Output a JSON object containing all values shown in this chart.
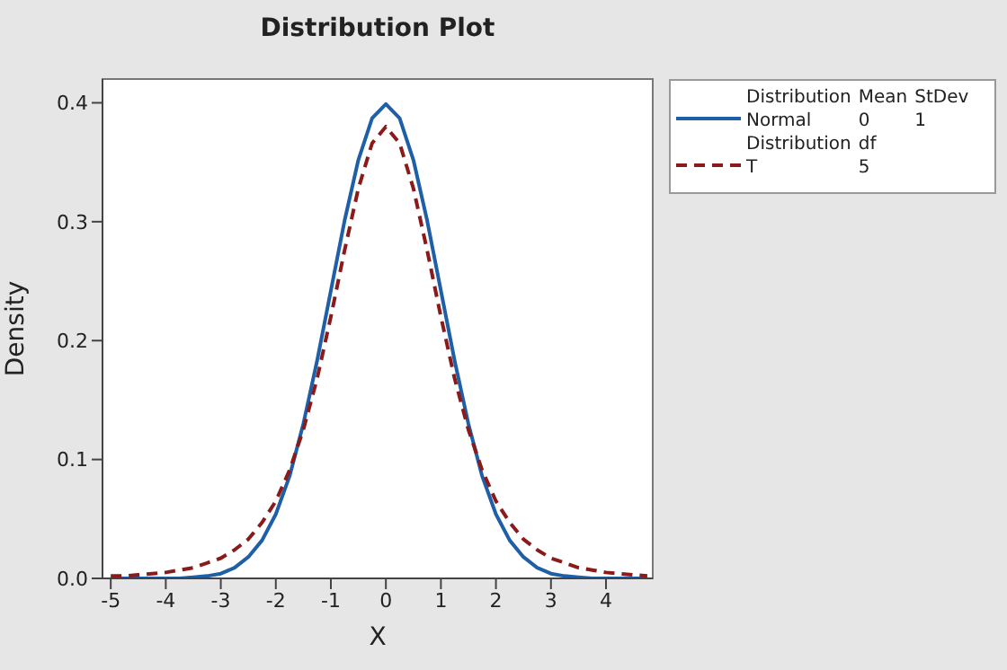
{
  "chart_data": {
    "type": "line",
    "title": "Distribution Plot",
    "xlabel": "X",
    "ylabel": "Density",
    "x": [
      -5,
      -4.75,
      -4.5,
      -4.25,
      -4,
      -3.75,
      -3.5,
      -3.25,
      -3,
      -2.75,
      -2.5,
      -2.25,
      -2,
      -1.75,
      -1.5,
      -1.25,
      -1,
      -0.75,
      -0.5,
      -0.25,
      0,
      0.25,
      0.5,
      0.75,
      1,
      1.25,
      1.5,
      1.75,
      2,
      2.25,
      2.5,
      2.75,
      3,
      3.25,
      3.5,
      3.75,
      4,
      4.25,
      4.5,
      4.75
    ],
    "series": [
      {
        "name": "Normal",
        "color": "#1f5fa8",
        "line_style": "solid",
        "values": [
          0,
          0,
          0,
          0,
          0,
          0,
          0.001,
          0.002,
          0.004,
          0.009,
          0.018,
          0.032,
          0.054,
          0.086,
          0.13,
          0.183,
          0.242,
          0.301,
          0.352,
          0.387,
          0.399,
          0.387,
          0.352,
          0.301,
          0.242,
          0.183,
          0.13,
          0.086,
          0.054,
          0.032,
          0.018,
          0.009,
          0.004,
          0.002,
          0.001,
          0,
          0,
          0,
          0,
          0
        ]
      },
      {
        "name": "T",
        "color": "#8b1a1a",
        "line_style": "dashed",
        "values": [
          0.002,
          0.002,
          0.003,
          0.004,
          0.005,
          0.007,
          0.009,
          0.013,
          0.017,
          0.024,
          0.033,
          0.047,
          0.065,
          0.091,
          0.125,
          0.168,
          0.22,
          0.276,
          0.328,
          0.366,
          0.38,
          0.366,
          0.328,
          0.276,
          0.22,
          0.168,
          0.125,
          0.091,
          0.065,
          0.047,
          0.033,
          0.024,
          0.017,
          0.013,
          0.009,
          0.007,
          0.005,
          0.004,
          0.003,
          0.002
        ]
      }
    ],
    "annotations": [
      "Distribution",
      "Mean",
      "StDev",
      "0",
      "1",
      "Distribution",
      "df",
      "5"
    ],
    "xlim": [
      -5.15,
      4.85
    ],
    "xticks": [
      -5,
      -4,
      -3,
      -2,
      -1,
      0,
      1,
      2,
      3,
      4
    ],
    "ylim": [
      0,
      0.42
    ],
    "yticks": [
      {
        "value": 0,
        "label": "0.0"
      },
      {
        "value": 0.1,
        "label": "0.1"
      },
      {
        "value": 0.2,
        "label": "0.2"
      },
      {
        "value": 0.3,
        "label": "0.3"
      },
      {
        "value": 0.4,
        "label": "0.4"
      }
    ],
    "legend": "top right",
    "marker": "none"
  }
}
